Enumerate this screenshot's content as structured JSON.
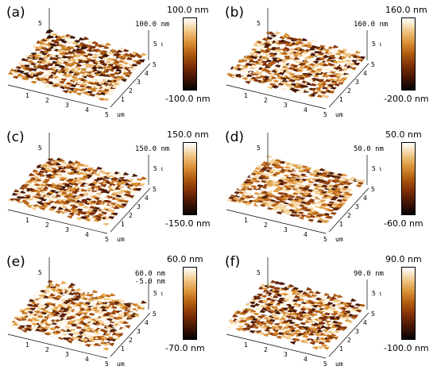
{
  "panels": [
    {
      "letter": "(a)",
      "scale_top": "100.0 nm",
      "scale_bottom": "-100.0 nm",
      "z_max": "100.0 nm",
      "z_extra": "",
      "x_ticks": [
        "1",
        "2",
        "3",
        "4",
        "5"
      ],
      "y_ticks": [
        "1",
        "2",
        "3",
        "4",
        "5"
      ],
      "y_top": "5",
      "axis_unit": "um",
      "theme": "dark"
    },
    {
      "letter": "(b)",
      "scale_top": "160.0 nm",
      "scale_bottom": "-200.0 nm",
      "z_max": "160.0 nm",
      "z_extra": "",
      "x_ticks": [
        "1",
        "2",
        "3",
        "4",
        "5"
      ],
      "y_ticks": [
        "1",
        "2",
        "3",
        "4",
        "5"
      ],
      "y_top": "5",
      "axis_unit": "um",
      "theme": "mid"
    },
    {
      "letter": "(c)",
      "scale_top": "150.0 nm",
      "scale_bottom": "-150.0 nm",
      "z_max": "150.0 nm",
      "z_extra": "",
      "x_ticks": [
        "1",
        "2",
        "3",
        "4",
        "5"
      ],
      "y_ticks": [
        "1",
        "2",
        "3",
        "4",
        "5"
      ],
      "y_top": "5",
      "axis_unit": "um",
      "theme": "mid"
    },
    {
      "letter": "(d)",
      "scale_top": "50.0 nm",
      "scale_bottom": "-60.0 nm",
      "z_max": "50.0 nm",
      "z_extra": "",
      "x_ticks": [
        "1",
        "2",
        "3",
        "4",
        "5"
      ],
      "y_ticks": [
        "1",
        "2",
        "3",
        "4",
        "5"
      ],
      "y_top": "5",
      "axis_unit": "um",
      "theme": "flat"
    },
    {
      "letter": "(e)",
      "scale_top": "60.0 nm",
      "scale_bottom": "-70.0 nm",
      "z_max": "60.0 nm",
      "z_extra": "-5.0 nm",
      "x_ticks": [
        "1",
        "2",
        "3",
        "4",
        "5"
      ],
      "y_ticks": [
        "1",
        "2",
        "3",
        "4",
        "5"
      ],
      "y_top": "5",
      "axis_unit": "um",
      "theme": "light"
    },
    {
      "letter": "(f)",
      "scale_top": "90.0 nm",
      "scale_bottom": "-100.0 nm",
      "z_max": "90.0 nm",
      "z_extra": "",
      "x_ticks": [
        "1",
        "2",
        "3",
        "4",
        "5"
      ],
      "y_ticks": [
        "1",
        "2",
        "3",
        "4",
        "5"
      ],
      "y_top": "5",
      "axis_unit": "um",
      "theme": "mid"
    }
  ]
}
